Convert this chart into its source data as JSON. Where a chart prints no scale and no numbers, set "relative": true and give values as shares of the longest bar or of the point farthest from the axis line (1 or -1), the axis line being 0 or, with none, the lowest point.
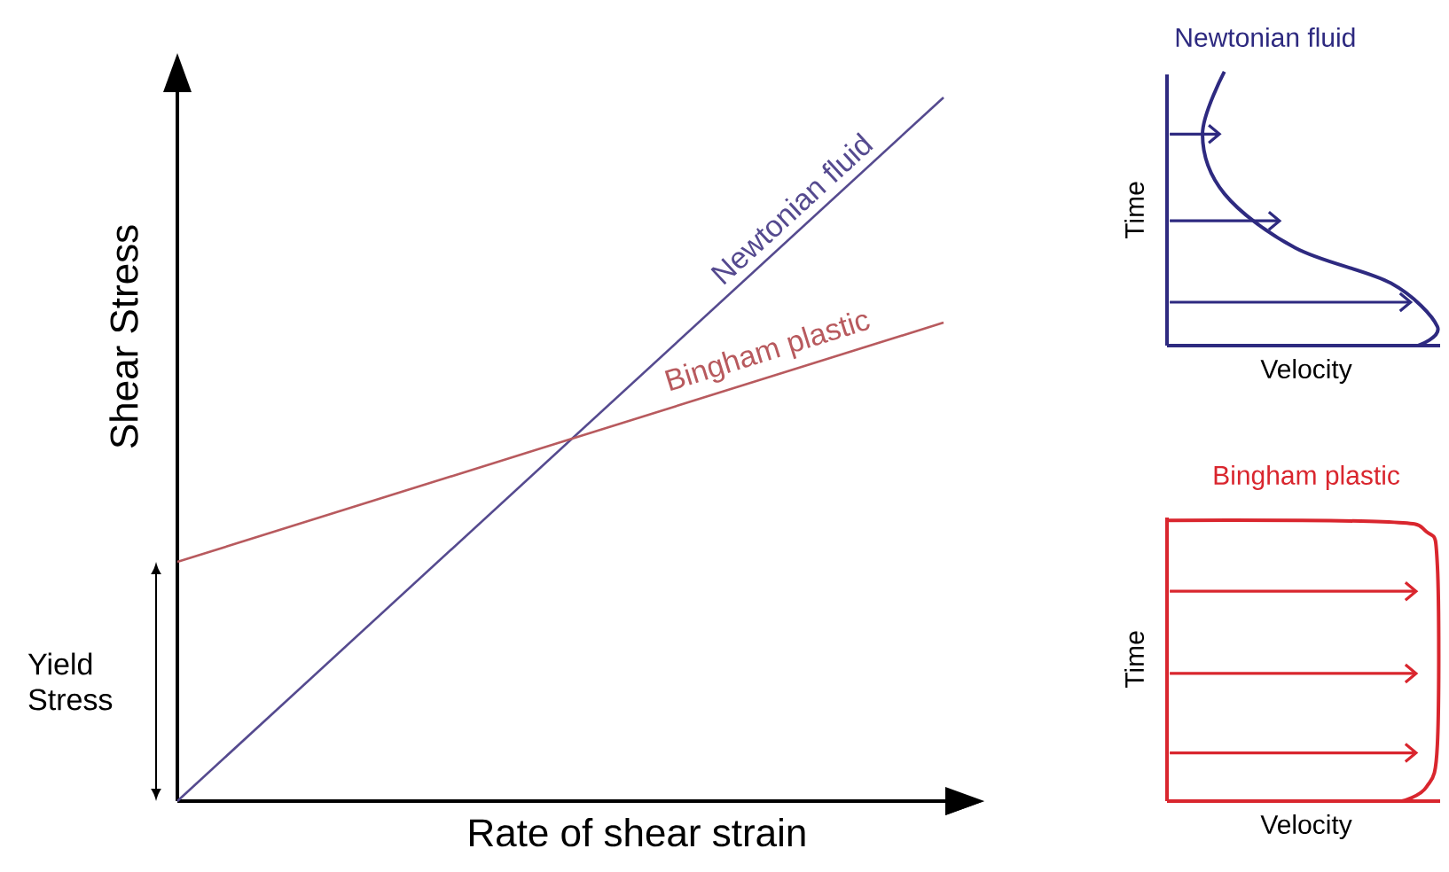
{
  "chart_data": [
    {
      "type": "line",
      "relative": true,
      "xlabel": "Rate of shear strain",
      "ylabel": "Shear Stress",
      "categories": [
        null,
        null
      ],
      "series": [
        {
          "name": "Newtonian fluid",
          "color": "#554a8f",
          "values": [
            0,
            1
          ]
        },
        {
          "name": "Bingham plastic",
          "color": "#b85a5e",
          "values": [
            0.34,
            0.68
          ]
        }
      ],
      "annotations": [
        "Yield Stress"
      ]
    },
    {
      "type": "other",
      "title": "Newtonian fluid",
      "xlabel": "Velocity",
      "ylabel": "Time"
    },
    {
      "type": "other",
      "title": "Bingham plastic",
      "xlabel": "Velocity",
      "ylabel": "Time"
    }
  ]
}
